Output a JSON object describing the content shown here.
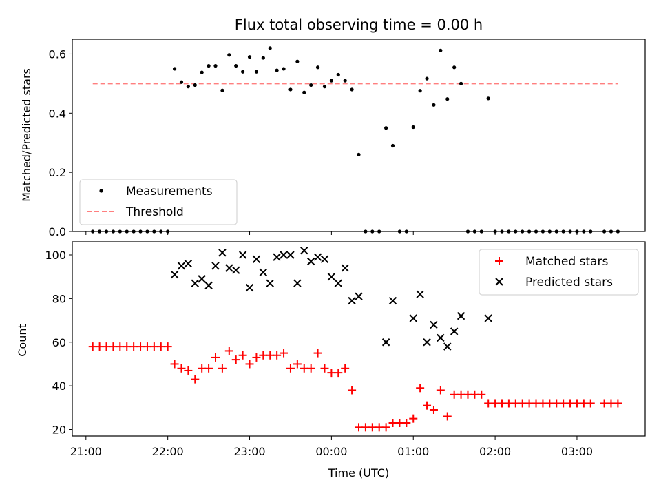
{
  "chart_data": [
    {
      "type": "scatter",
      "title": "Flux total observing time = 0.00 h",
      "xlabel": "",
      "ylabel": "Matched/Predicted stars",
      "x_unit": "time",
      "ylim": [
        0,
        0.65
      ],
      "yticks": [
        0.0,
        0.2,
        0.4,
        0.6
      ],
      "ytick_labels": [
        "0.0",
        "0.2",
        "0.4",
        "0.6"
      ],
      "legend_position": "lower-left",
      "series": [
        {
          "name": "Measurements",
          "marker": "dot",
          "color": "#000000",
          "x": [
            "21:05",
            "21:10",
            "21:15",
            "21:20",
            "21:25",
            "21:30",
            "21:35",
            "21:40",
            "21:45",
            "21:50",
            "21:55",
            "22:00",
            "22:05",
            "22:10",
            "22:15",
            "22:20",
            "22:25",
            "22:30",
            "22:35",
            "22:40",
            "22:45",
            "22:50",
            "22:55",
            "23:00",
            "23:05",
            "23:10",
            "23:15",
            "23:20",
            "23:25",
            "23:30",
            "23:35",
            "23:40",
            "23:45",
            "23:50",
            "23:55",
            "00:00",
            "00:05",
            "00:10",
            "00:15",
            "00:20",
            "00:25",
            "00:30",
            "00:35",
            "00:40",
            "00:45",
            "00:50",
            "00:55",
            "01:00",
            "01:05",
            "01:10",
            "01:15",
            "01:20",
            "01:25",
            "01:30",
            "01:35",
            "01:40",
            "01:45",
            "01:50",
            "01:55",
            "02:00",
            "02:05",
            "02:10",
            "02:15",
            "02:20",
            "02:25",
            "02:30",
            "02:35",
            "02:40",
            "02:45",
            "02:50",
            "02:55",
            "03:00",
            "03:05",
            "03:10",
            "03:20",
            "03:25",
            "03:30"
          ],
          "y": [
            0,
            0,
            0,
            0,
            0,
            0,
            0,
            0,
            0,
            0,
            0,
            0,
            0.55,
            0.505,
            0.49,
            0.495,
            0.538,
            0.56,
            0.56,
            0.477,
            0.597,
            0.56,
            0.54,
            0.59,
            0.54,
            0.587,
            0.62,
            0.545,
            0.55,
            0.48,
            0.575,
            0.47,
            0.495,
            0.555,
            0.49,
            0.51,
            0.53,
            0.51,
            0.48,
            0.26,
            0,
            0,
            0,
            0.35,
            0.29,
            0,
            0,
            0.353,
            0.476,
            0.517,
            0.428,
            0.612,
            0.448,
            0.555,
            0.5,
            0,
            0,
            0,
            0.45,
            0,
            0,
            0,
            0,
            0,
            0,
            0,
            0,
            0,
            0,
            0,
            0,
            0,
            0,
            0,
            0,
            0,
            0
          ]
        },
        {
          "name": "Threshold",
          "line_style": "dashed",
          "color": "#ff7f7f",
          "x": [
            "21:05",
            "03:30"
          ],
          "y": [
            0.5,
            0.5
          ]
        }
      ]
    },
    {
      "type": "scatter",
      "title": "",
      "xlabel": "Time (UTC)",
      "ylabel": "Count",
      "x_unit": "time",
      "xlim": [
        "20:50",
        "03:50"
      ],
      "xticks": [
        "21:00",
        "22:00",
        "23:00",
        "00:00",
        "01:00",
        "02:00",
        "03:00"
      ],
      "ylim": [
        17,
        106
      ],
      "yticks": [
        20,
        40,
        60,
        80,
        100
      ],
      "legend_position": "upper-right",
      "series": [
        {
          "name": "Matched stars",
          "marker": "plus",
          "color": "#ff0000",
          "x": [
            "21:05",
            "21:10",
            "21:15",
            "21:20",
            "21:25",
            "21:30",
            "21:35",
            "21:40",
            "21:45",
            "21:50",
            "21:55",
            "22:00",
            "22:05",
            "22:10",
            "22:15",
            "22:20",
            "22:25",
            "22:30",
            "22:35",
            "22:40",
            "22:45",
            "22:50",
            "22:55",
            "23:00",
            "23:05",
            "23:10",
            "23:15",
            "23:20",
            "23:25",
            "23:30",
            "23:35",
            "23:40",
            "23:45",
            "23:50",
            "23:55",
            "00:00",
            "00:05",
            "00:10",
            "00:15",
            "00:20",
            "00:25",
            "00:30",
            "00:35",
            "00:40",
            "00:45",
            "00:50",
            "00:55",
            "01:00",
            "01:05",
            "01:10",
            "01:15",
            "01:20",
            "01:25",
            "01:30",
            "01:35",
            "01:40",
            "01:45",
            "01:50",
            "01:55",
            "02:00",
            "02:05",
            "02:10",
            "02:15",
            "02:20",
            "02:25",
            "02:30",
            "02:35",
            "02:40",
            "02:45",
            "02:50",
            "02:55",
            "03:00",
            "03:05",
            "03:10",
            "03:20",
            "03:25",
            "03:30"
          ],
          "y": [
            58,
            58,
            58,
            58,
            58,
            58,
            58,
            58,
            58,
            58,
            58,
            58,
            50,
            48,
            47,
            43,
            48,
            48,
            53,
            48,
            56,
            52,
            54,
            50,
            53,
            54,
            54,
            54,
            55,
            48,
            50,
            48,
            48,
            55,
            48,
            46,
            46,
            48,
            38,
            21,
            21,
            21,
            21,
            21,
            23,
            23,
            23,
            25,
            39,
            31,
            29,
            38,
            26,
            36,
            36,
            36,
            36,
            36,
            32,
            32,
            32,
            32,
            32,
            32,
            32,
            32,
            32,
            32,
            32,
            32,
            32,
            32,
            32,
            32,
            32,
            32,
            32
          ]
        },
        {
          "name": "Predicted stars",
          "marker": "x",
          "color": "#000000",
          "x": [
            "22:05",
            "22:10",
            "22:15",
            "22:20",
            "22:25",
            "22:30",
            "22:35",
            "22:40",
            "22:45",
            "22:50",
            "22:55",
            "23:00",
            "23:05",
            "23:10",
            "23:15",
            "23:20",
            "23:25",
            "23:30",
            "23:35",
            "23:40",
            "23:45",
            "23:50",
            "23:55",
            "00:00",
            "00:05",
            "00:10",
            "00:15",
            "00:20",
            "00:40",
            "00:45",
            "01:00",
            "01:05",
            "01:10",
            "01:15",
            "01:20",
            "01:25",
            "01:30",
            "01:35",
            "01:55"
          ],
          "y": [
            91,
            95,
            96,
            87,
            89,
            86,
            95,
            101,
            94,
            93,
            100,
            85,
            98,
            92,
            87,
            99,
            100,
            100,
            87,
            102,
            97,
            99,
            98,
            90,
            87,
            94,
            79,
            81,
            60,
            79,
            71,
            82,
            60,
            68,
            62,
            58,
            65,
            72,
            71
          ]
        }
      ]
    }
  ]
}
